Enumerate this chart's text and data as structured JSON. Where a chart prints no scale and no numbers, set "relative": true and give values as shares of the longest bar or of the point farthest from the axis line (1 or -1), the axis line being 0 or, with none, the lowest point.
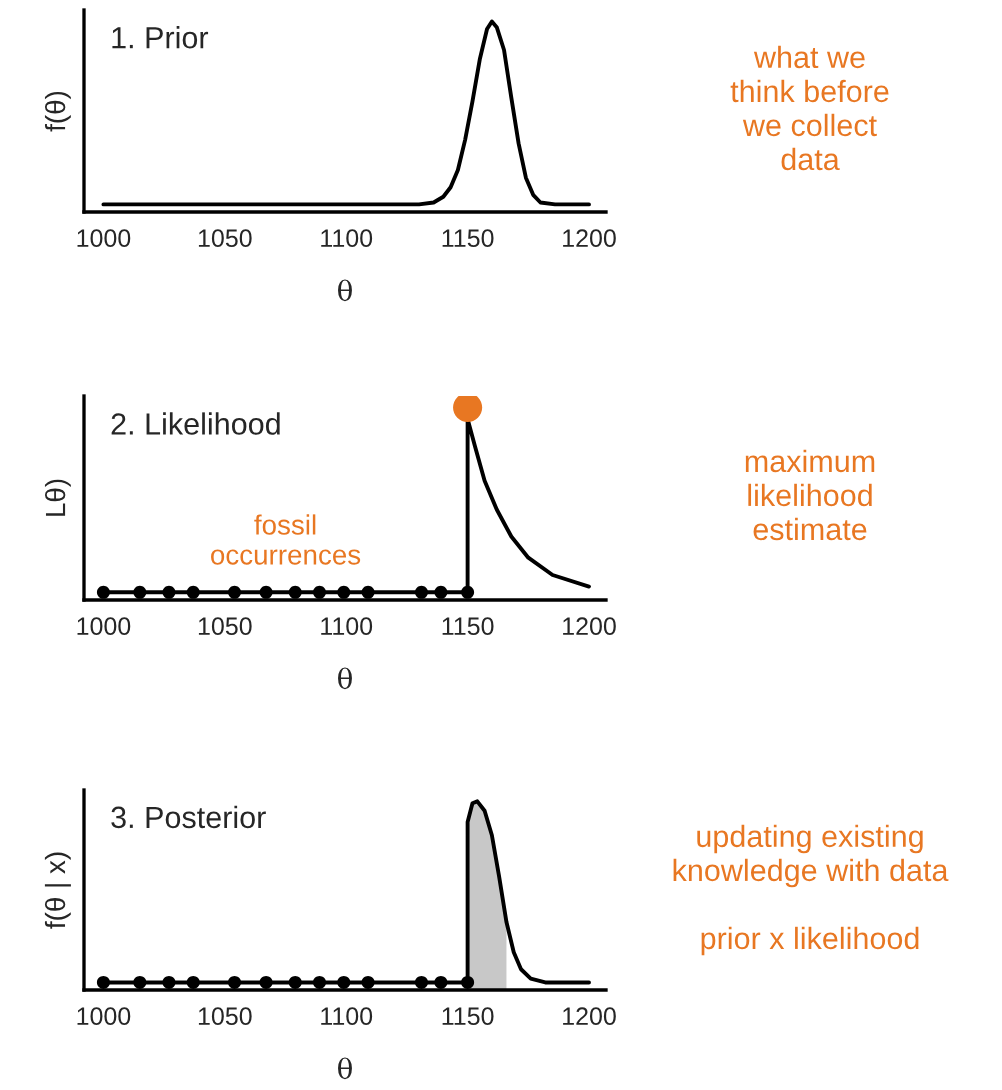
{
  "chart_data": [
    {
      "type": "line",
      "title": "1. Prior",
      "xlabel": "θ",
      "ylabel": "f(θ)",
      "relative": true,
      "xlim": [
        992,
        1207
      ],
      "xticks": [
        1000,
        1050,
        1100,
        1150,
        1200
      ],
      "annotations": [
        "what we\nthink before\nwe collect\ndata"
      ],
      "series": [
        {
          "color": "#000000",
          "x": [
            1000,
            1130,
            1136,
            1140,
            1143,
            1146,
            1149,
            1152,
            1155,
            1158,
            1160,
            1162,
            1165,
            1168,
            1171,
            1174,
            1177,
            1180,
            1186,
            1200
          ],
          "values": [
            0.04,
            0.04,
            0.05,
            0.08,
            0.13,
            0.22,
            0.38,
            0.58,
            0.8,
            0.96,
            1,
            0.97,
            0.85,
            0.6,
            0.36,
            0.18,
            0.09,
            0.05,
            0.04,
            0.04
          ]
        }
      ]
    },
    {
      "type": "line",
      "title": "2. Likelihood",
      "xlabel": "θ",
      "ylabel": "Lθ)",
      "relative": true,
      "xlim": [
        992,
        1207
      ],
      "xticks": [
        1000,
        1050,
        1100,
        1150,
        1200
      ],
      "annotations": [
        "maximum\nlikelihood\nestimate"
      ],
      "series": [
        {
          "color": "#000000",
          "x": [
            1000,
            1150,
            1150,
            1153,
            1157,
            1162,
            1168,
            1175,
            1185,
            1200
          ],
          "values": [
            0.04,
            0.04,
            0.94,
            0.8,
            0.62,
            0.47,
            0.33,
            0.22,
            0.13,
            0.07
          ]
        },
        {
          "type": "scatter",
          "name": "fossil\noccurrences",
          "marker": "circle",
          "color": "#000000",
          "x": [
            1000,
            1015,
            1027,
            1037,
            1054,
            1067,
            1079,
            1089,
            1099,
            1109,
            1131,
            1139,
            1150
          ],
          "values": [
            0.04,
            0.04,
            0.04,
            0.04,
            0.04,
            0.04,
            0.04,
            0.04,
            0.04,
            0.04,
            0.04,
            0.04,
            0.04
          ]
        },
        {
          "type": "scatter",
          "marker": "circle",
          "color": "#e87722",
          "x": [
            1150
          ],
          "values": [
            1
          ]
        }
      ]
    },
    {
      "type": "line",
      "title": "3. Posterior",
      "xlabel": "θ",
      "ylabel": "f(θ | x)",
      "relative": true,
      "xlim": [
        992,
        1207
      ],
      "xticks": [
        1000,
        1050,
        1100,
        1150,
        1200
      ],
      "annotations": [
        "updating existing\nknowledge with data",
        "prior x likelihood"
      ],
      "series": [
        {
          "type": "area",
          "color": "#c8c8c8",
          "x": [
            1150,
            1152,
            1154,
            1157,
            1160,
            1163,
            1166
          ],
          "values": [
            0.89,
            0.99,
            1,
            0.95,
            0.82,
            0.6,
            0.36
          ]
        },
        {
          "color": "#000000",
          "x": [
            1000,
            1150,
            1150,
            1152,
            1154,
            1157,
            1160,
            1163,
            1166,
            1169,
            1172,
            1176,
            1182,
            1200
          ],
          "values": [
            0.04,
            0.04,
            0.89,
            0.99,
            1,
            0.95,
            0.82,
            0.6,
            0.36,
            0.2,
            0.11,
            0.06,
            0.04,
            0.04
          ]
        },
        {
          "type": "scatter",
          "marker": "circle",
          "color": "#000000",
          "x": [
            1000,
            1015,
            1027,
            1037,
            1054,
            1067,
            1079,
            1089,
            1099,
            1109,
            1131,
            1139,
            1150
          ],
          "values": [
            0.04,
            0.04,
            0.04,
            0.04,
            0.04,
            0.04,
            0.04,
            0.04,
            0.04,
            0.04,
            0.04,
            0.04,
            0.04
          ]
        }
      ]
    }
  ]
}
